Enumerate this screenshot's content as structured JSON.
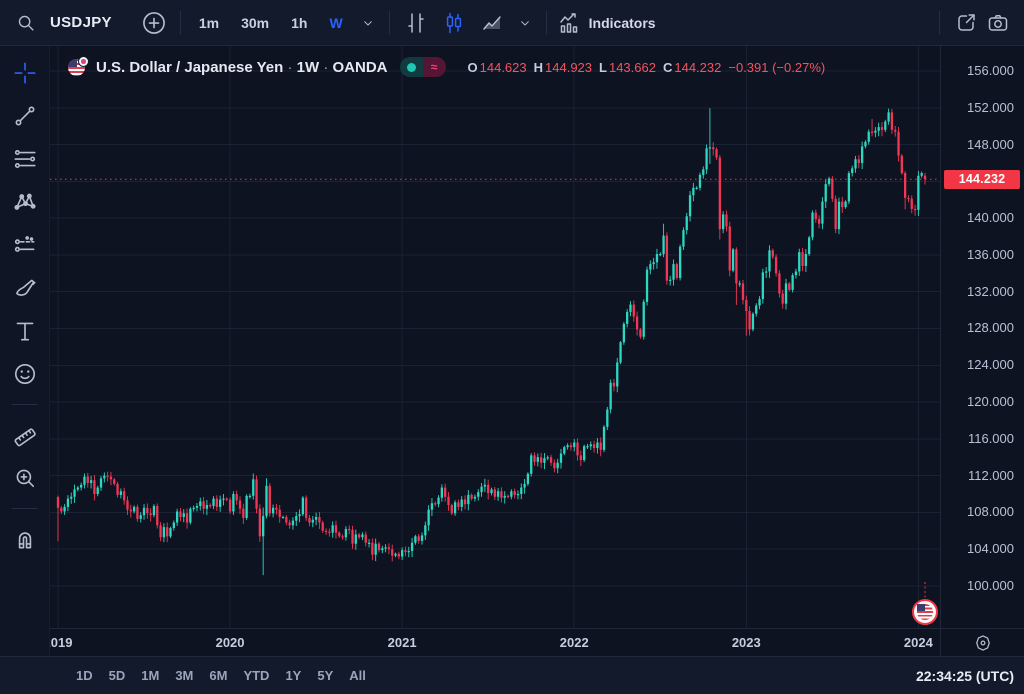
{
  "top_toolbar": {
    "symbol": "USDJPY",
    "timeframes": [
      "1m",
      "30m",
      "1h",
      "W"
    ],
    "active_timeframe": "W",
    "indicators_label": "Indicators"
  },
  "left_toolbar": {
    "tools": [
      "crosshair",
      "trend-line",
      "fib-lines",
      "xabcd-pattern",
      "forecast",
      "brush",
      "text",
      "emoji",
      "ruler",
      "zoom-in",
      "magnet"
    ],
    "active_tool": "crosshair"
  },
  "chart_header": {
    "title": "U.S. Dollar / Japanese Yen",
    "sep1": "·",
    "interval": "1W",
    "sep2": "·",
    "exchange": "OANDA",
    "toggle_wave": "≈",
    "ohlc": {
      "o_label": "O",
      "o": "144.623",
      "h_label": "H",
      "h": "144.923",
      "l_label": "L",
      "l": "143.662",
      "c_label": "C",
      "c": "144.232",
      "change": "−0.391 (−0.27%)"
    }
  },
  "price_axis": {
    "ticks": [
      "156.000",
      "152.000",
      "148.000",
      "140.000",
      "136.000",
      "132.000",
      "128.000",
      "124.000",
      "120.000",
      "116.000",
      "112.000",
      "108.000",
      "104.000",
      "100.000"
    ],
    "last_price_label": "144.232"
  },
  "time_axis": {
    "years": [
      "2019",
      "2020",
      "2021",
      "2022",
      "2023",
      "2024"
    ]
  },
  "bottom_bar": {
    "ranges": [
      "1D",
      "5D",
      "1M",
      "3M",
      "6M",
      "YTD",
      "1Y",
      "5Y",
      "All"
    ],
    "clock": "22:34:25 (UTC)"
  },
  "colors": {
    "up": "#2bd9c2",
    "down": "#f23655",
    "accent_blue": "#2962ff",
    "last_price_bg": "#f23645",
    "background": "#0d1321",
    "toolbar": "#131a2b",
    "grid": "#1a2233",
    "axis_text": "#bac1d4"
  },
  "chart_data": {
    "type": "candlestick",
    "symbol": "USDJPY",
    "interval": "1W",
    "title": "U.S. Dollar / Japanese Yen · 1W · OANDA",
    "y_axis": {
      "min": 95.4,
      "max": 158.6,
      "tick_step": 4,
      "tick_min": 100,
      "tick_max": 156
    },
    "last_price": 144.232,
    "first_open": 109.68,
    "year_start_indices": {
      "2019": 0,
      "2020": 52,
      "2021": 104,
      "2022": 156,
      "2023": 208,
      "2024": 260
    },
    "weekly_closes": [
      108.5,
      108.1,
      108.6,
      109.5,
      109.7,
      110.5,
      110.7,
      111.0,
      111.9,
      111.2,
      111.5,
      110.0,
      110.7,
      111.7,
      112.0,
      111.9,
      111.6,
      111.1,
      109.9,
      110.3,
      109.3,
      108.3,
      108.1,
      108.6,
      107.3,
      107.7,
      108.5,
      107.9,
      107.7,
      108.7,
      106.6,
      105.3,
      106.4,
      105.4,
      106.3,
      106.9,
      108.1,
      107.5,
      107.9,
      106.9,
      108.4,
      108.5,
      108.7,
      109.2,
      108.4,
      108.8,
      108.7,
      109.5,
      108.6,
      109.4,
      109.5,
      109.4,
      108.1,
      110.0,
      109.3,
      108.4,
      107.4,
      109.8,
      109.8,
      111.6,
      108.4,
      105.4,
      107.6,
      110.9,
      107.9,
      108.5,
      108.3,
      107.5,
      107.5,
      106.9,
      106.6,
      107.1,
      107.6,
      107.8,
      109.6,
      107.4,
      106.9,
      107.2,
      107.5,
      106.9,
      106.0,
      105.9,
      105.8,
      106.6,
      105.8,
      105.4,
      105.3,
      106.2,
      106.1,
      104.6,
      105.6,
      105.3,
      105.6,
      104.7,
      104.7,
      103.4,
      104.6,
      103.9,
      104.1,
      104.2,
      104.0,
      103.3,
      103.5,
      103.2,
      103.9,
      103.7,
      103.8,
      104.7,
      105.4,
      104.9,
      105.5,
      106.6,
      108.3,
      109.0,
      108.9,
      109.6,
      110.7,
      109.7,
      108.8,
      107.9,
      109.1,
      108.6,
      109.4,
      108.9,
      109.9,
      109.5,
      109.7,
      110.2,
      110.8,
      111.0,
      110.1,
      110.5,
      109.7,
      110.3,
      109.6,
      109.8,
      109.7,
      110.3,
      109.9,
      110.0,
      110.7,
      111.1,
      112.2,
      114.2,
      113.5,
      114.0,
      113.4,
      113.9,
      114.0,
      113.4,
      112.8,
      113.4,
      114.4,
      115.1,
      115.3,
      115.1,
      115.6,
      114.2,
      113.7,
      115.2,
      115.2,
      115.4,
      115.0,
      115.6,
      114.8,
      117.3,
      119.2,
      122.1,
      121.7,
      124.3,
      126.5,
      128.5,
      129.8,
      130.6,
      129.3,
      127.9,
      127.1,
      130.9,
      134.4,
      135.0,
      135.2,
      136.1,
      136.1,
      138.1,
      133.2,
      133.3,
      135.0,
      133.5,
      136.9,
      138.7,
      140.2,
      142.5,
      143.3,
      143.3,
      144.7,
      145.3,
      147.6,
      147.7,
      147.5,
      146.6,
      138.8,
      140.4,
      139.1,
      134.3,
      136.6,
      132.9,
      132.9,
      131.1,
      129.9,
      127.9,
      129.6,
      130.5,
      131.2,
      134.1,
      134.2,
      136.5,
      135.8,
      134.0,
      131.8,
      130.7,
      132.9,
      132.2,
      133.8,
      134.2,
      136.3,
      134.8,
      136.1,
      137.9,
      140.6,
      139.9,
      139.4,
      141.8,
      143.7,
      144.3,
      142.1,
      138.8,
      141.8,
      141.2,
      141.8,
      144.9,
      145.4,
      146.4,
      146.0,
      147.8,
      148.3,
      149.4,
      149.3,
      149.5,
      149.9,
      149.6,
      150.5,
      151.5,
      149.6,
      149.4,
      146.8,
      144.9,
      142.2,
      142.1,
      141.0,
      140.9,
      144.6,
      144.9,
      144.232
    ],
    "wick_overrides": {
      "0": {
        "l": 104.87
      },
      "59": {
        "h": 112.23
      },
      "62": {
        "l": 101.18,
        "h": 108.54
      },
      "63": {
        "h": 111.71
      },
      "129": {
        "h": 111.66
      },
      "183": {
        "h": 139.39
      },
      "197": {
        "h": 151.95,
        "l": 145.9
      },
      "200": {
        "l": 137.67
      },
      "205": {
        "l": 130.56
      },
      "208": {
        "l": 127.21
      },
      "246": {
        "h": 150.78
      },
      "251": {
        "h": 151.91
      },
      "256": {
        "l": 140.95
      },
      "259": {
        "l": 140.25
      },
      "262": {
        "o": 144.623,
        "h": 144.923,
        "l": 143.662,
        "c": 144.232
      }
    }
  }
}
